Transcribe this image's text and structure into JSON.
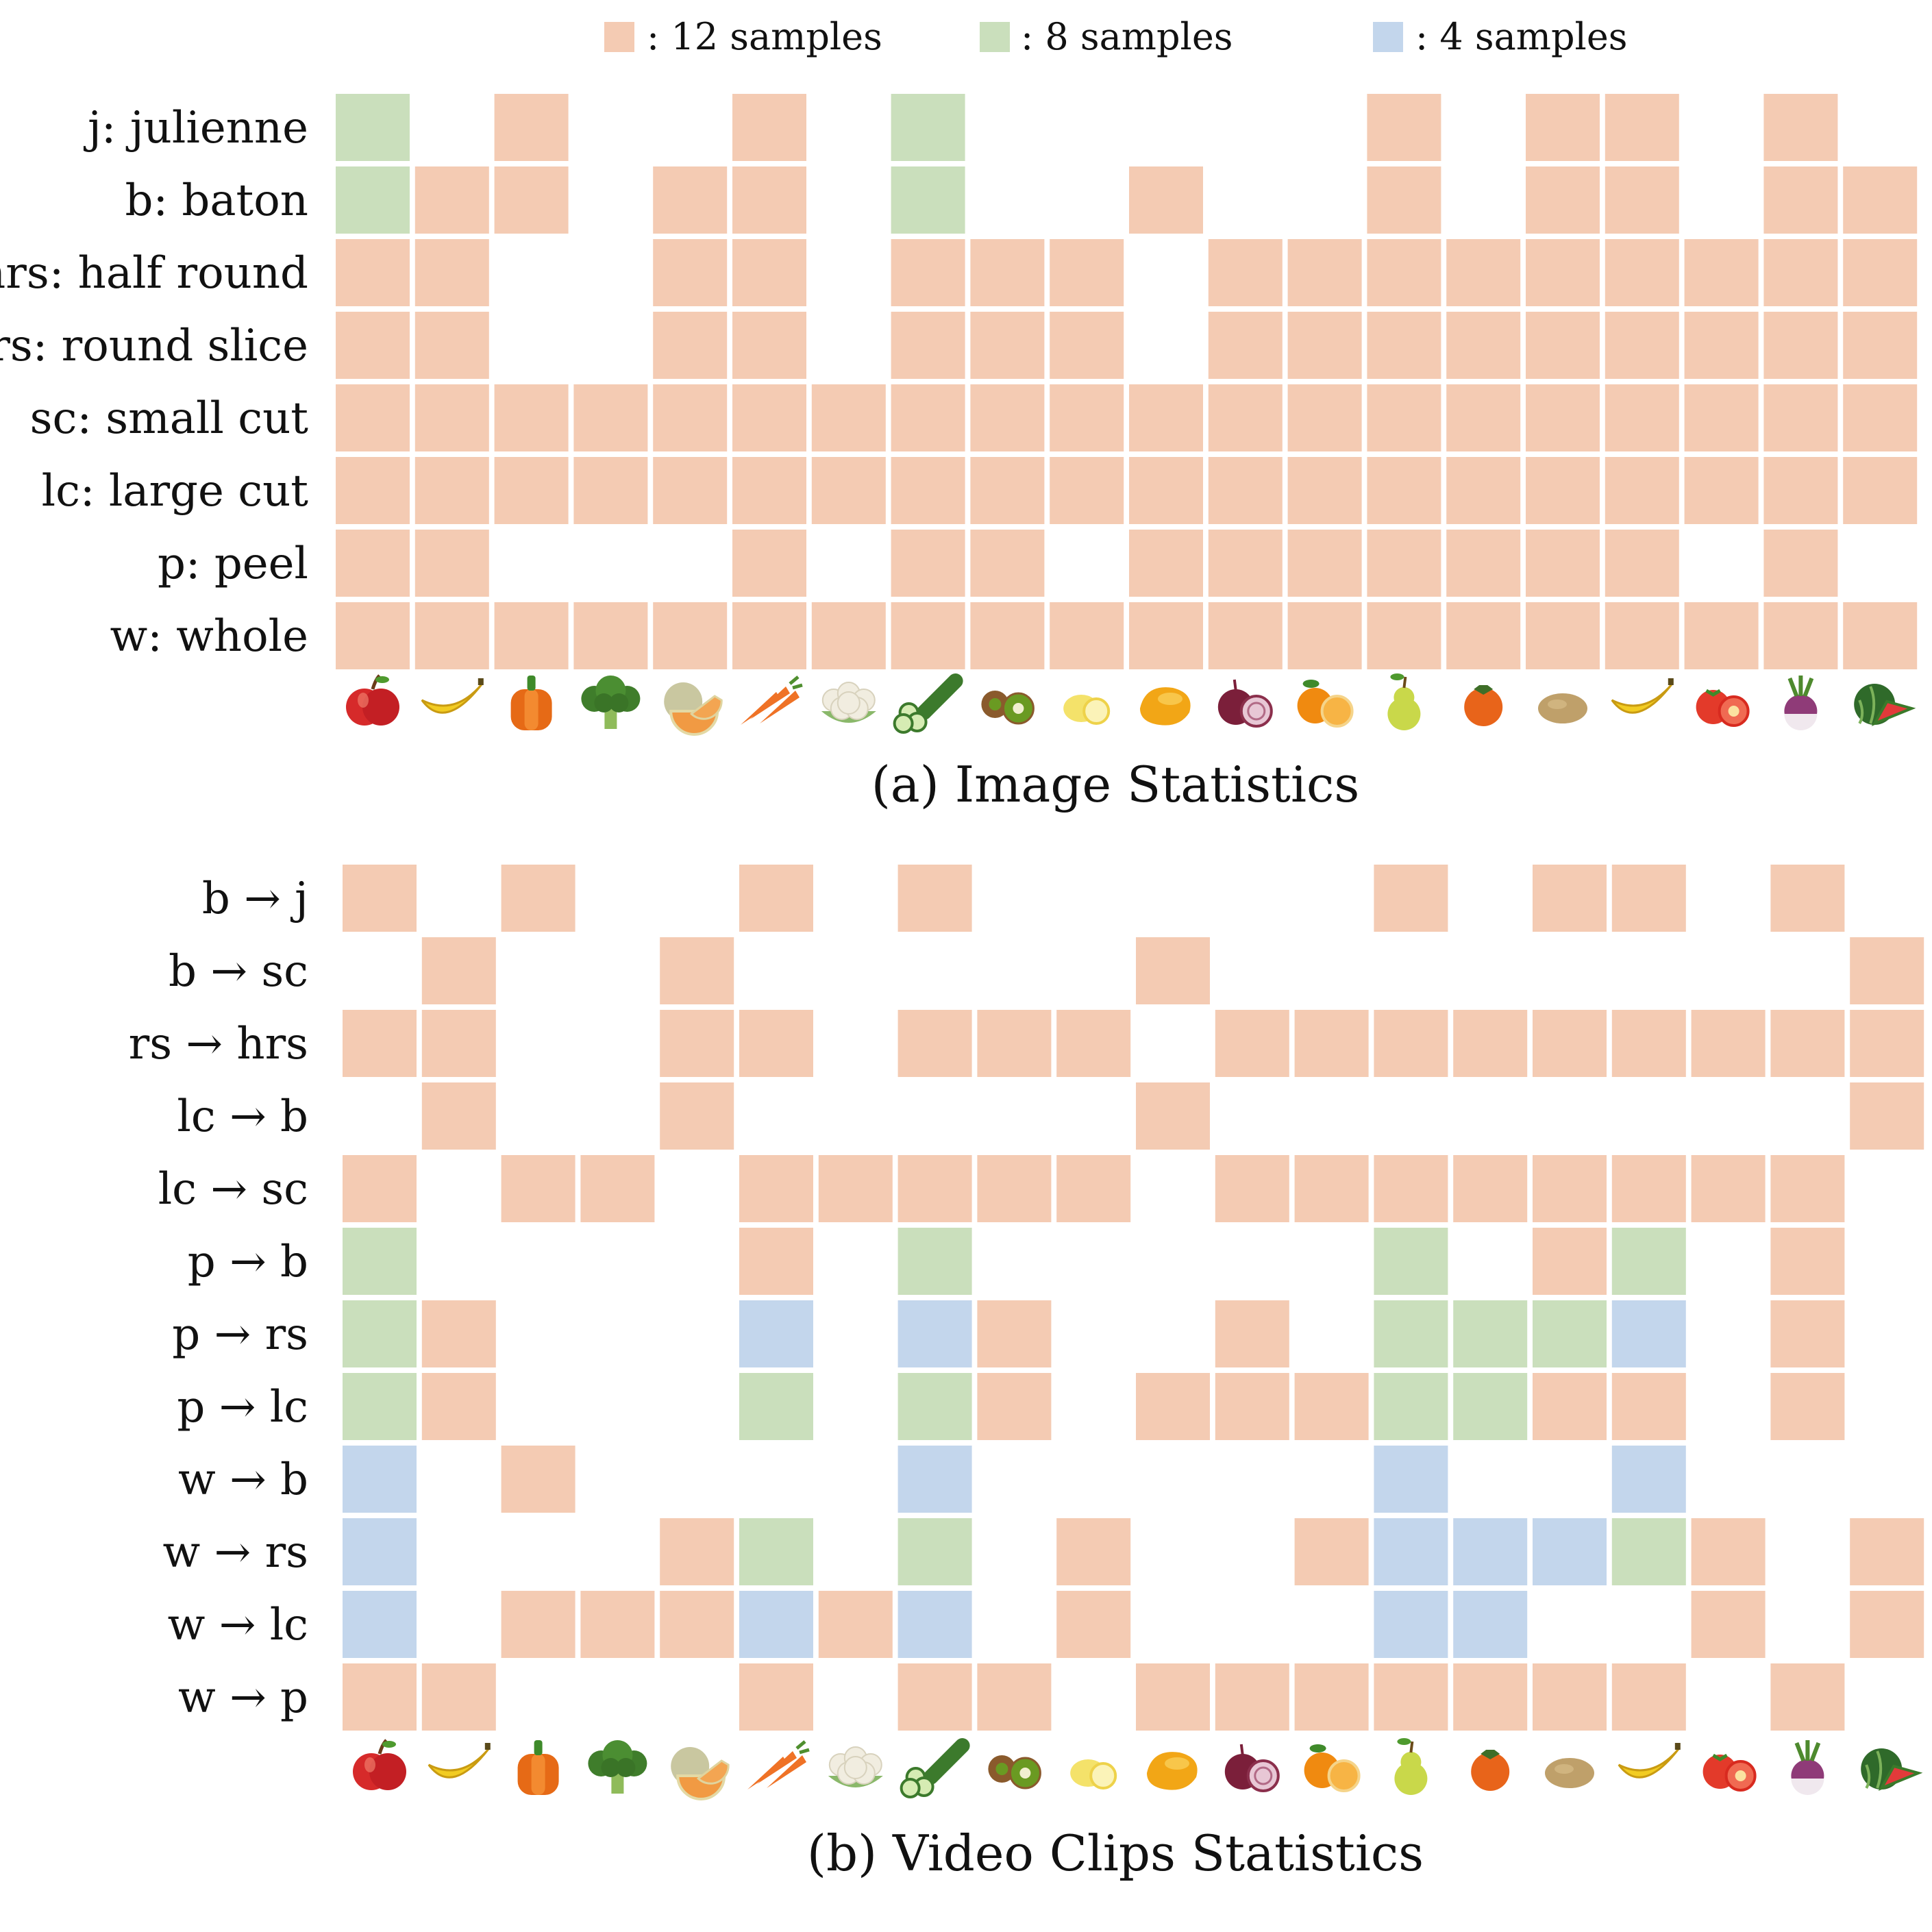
{
  "colors": {
    "12": "#f4cbb3",
    "8": "#cadfbc",
    "4": "#c3d6ec"
  },
  "legend": [
    {
      "value": 12,
      "label": ": 12 samples"
    },
    {
      "value": 8,
      "label": ": 8 samples"
    },
    {
      "value": 4,
      "label": ": 4 samples"
    }
  ],
  "food_icons": [
    "apple-icon",
    "banana-icon",
    "bell-pepper-icon",
    "broccoli-icon",
    "melon-icon",
    "carrot-icon",
    "cauliflower-icon",
    "cucumber-icon",
    "kiwi-icon",
    "lemon-icon",
    "mango-icon",
    "onion-icon",
    "orange-icon",
    "pear-icon",
    "persimmon-icon",
    "potato-icon",
    "plantain-icon",
    "tomato-icon",
    "turnip-icon",
    "watermelon-icon"
  ],
  "chart_data": [
    {
      "type": "heatmap",
      "title": "(a) Image Statistics",
      "rows": [
        "j: julienne",
        "b: baton",
        "hrs: half round",
        "rs: round slice",
        "sc: small cut",
        "lc: large cut",
        "p: peel",
        "w: whole"
      ],
      "values": [
        [
          8,
          0,
          12,
          0,
          0,
          12,
          0,
          8,
          0,
          0,
          0,
          0,
          0,
          12,
          0,
          12,
          12,
          0,
          12,
          0
        ],
        [
          8,
          12,
          12,
          0,
          12,
          12,
          0,
          8,
          0,
          0,
          12,
          0,
          0,
          12,
          0,
          12,
          12,
          0,
          12,
          12
        ],
        [
          12,
          12,
          0,
          0,
          12,
          12,
          0,
          12,
          12,
          12,
          0,
          12,
          12,
          12,
          12,
          12,
          12,
          12,
          12,
          12
        ],
        [
          12,
          12,
          0,
          0,
          12,
          12,
          0,
          12,
          12,
          12,
          0,
          12,
          12,
          12,
          12,
          12,
          12,
          12,
          12,
          12
        ],
        [
          12,
          12,
          12,
          12,
          12,
          12,
          12,
          12,
          12,
          12,
          12,
          12,
          12,
          12,
          12,
          12,
          12,
          12,
          12,
          12
        ],
        [
          12,
          12,
          12,
          12,
          12,
          12,
          12,
          12,
          12,
          12,
          12,
          12,
          12,
          12,
          12,
          12,
          12,
          12,
          12,
          12
        ],
        [
          12,
          12,
          0,
          0,
          0,
          12,
          0,
          12,
          12,
          0,
          12,
          12,
          12,
          12,
          12,
          12,
          12,
          0,
          12,
          0
        ],
        [
          12,
          12,
          12,
          12,
          12,
          12,
          12,
          12,
          12,
          12,
          12,
          12,
          12,
          12,
          12,
          12,
          12,
          12,
          12,
          12
        ]
      ]
    },
    {
      "type": "heatmap",
      "title": "(b) Video Clips Statistics",
      "rows": [
        "b → j",
        "b → sc",
        "rs → hrs",
        "lc → b",
        "lc → sc",
        "p → b",
        "p → rs",
        "p → lc",
        "w → b",
        "w → rs",
        "w → lc",
        "w → p"
      ],
      "values": [
        [
          12,
          0,
          12,
          0,
          0,
          12,
          0,
          12,
          0,
          0,
          0,
          0,
          0,
          12,
          0,
          12,
          12,
          0,
          12,
          0
        ],
        [
          0,
          12,
          0,
          0,
          12,
          0,
          0,
          0,
          0,
          0,
          12,
          0,
          0,
          0,
          0,
          0,
          0,
          0,
          0,
          12
        ],
        [
          12,
          12,
          0,
          0,
          12,
          12,
          0,
          12,
          12,
          12,
          0,
          12,
          12,
          12,
          12,
          12,
          12,
          12,
          12,
          12
        ],
        [
          0,
          12,
          0,
          0,
          12,
          0,
          0,
          0,
          0,
          0,
          12,
          0,
          0,
          0,
          0,
          0,
          0,
          0,
          0,
          12
        ],
        [
          12,
          0,
          12,
          12,
          0,
          12,
          12,
          12,
          12,
          12,
          0,
          12,
          12,
          12,
          12,
          12,
          12,
          12,
          12,
          0
        ],
        [
          8,
          0,
          0,
          0,
          0,
          12,
          0,
          8,
          0,
          0,
          0,
          0,
          0,
          8,
          0,
          12,
          8,
          0,
          12,
          0
        ],
        [
          8,
          12,
          0,
          0,
          0,
          4,
          0,
          4,
          12,
          0,
          0,
          12,
          0,
          8,
          8,
          8,
          4,
          0,
          12,
          0
        ],
        [
          8,
          12,
          0,
          0,
          0,
          8,
          0,
          8,
          12,
          0,
          12,
          12,
          12,
          8,
          8,
          12,
          12,
          0,
          12,
          0
        ],
        [
          4,
          0,
          12,
          0,
          0,
          0,
          0,
          4,
          0,
          0,
          0,
          0,
          0,
          4,
          0,
          0,
          4,
          0,
          0,
          0
        ],
        [
          4,
          0,
          0,
          0,
          12,
          8,
          0,
          8,
          0,
          12,
          0,
          0,
          12,
          4,
          4,
          4,
          8,
          12,
          0,
          12
        ],
        [
          4,
          0,
          12,
          12,
          12,
          4,
          12,
          4,
          0,
          12,
          0,
          0,
          0,
          4,
          4,
          0,
          0,
          12,
          0,
          12
        ],
        [
          12,
          12,
          0,
          0,
          0,
          12,
          0,
          12,
          12,
          0,
          12,
          12,
          12,
          12,
          12,
          12,
          12,
          0,
          12,
          0
        ]
      ]
    }
  ]
}
